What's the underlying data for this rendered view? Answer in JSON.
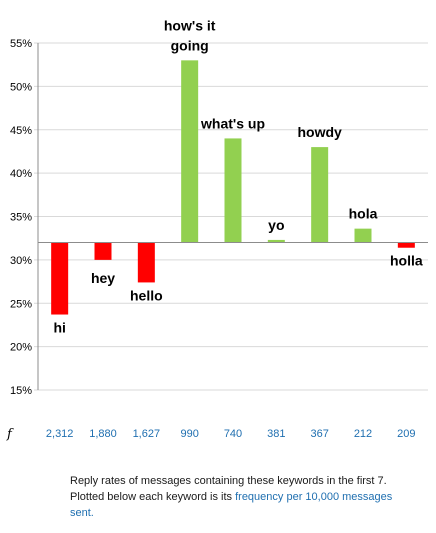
{
  "chart_data": {
    "type": "bar",
    "baseline": 32,
    "ylim": [
      15,
      55
    ],
    "yticks": [
      "15%",
      "20%",
      "25%",
      "30%",
      "35%",
      "40%",
      "45%",
      "50%",
      "55%"
    ],
    "grid": true,
    "categories": [
      "hi",
      "hey",
      "hello",
      "how's it going",
      "what's up",
      "yo",
      "howdy",
      "hola",
      "holla"
    ],
    "values": [
      23.7,
      30.0,
      27.4,
      53.0,
      44.0,
      32.3,
      43.0,
      33.6,
      31.4
    ],
    "frequencies": [
      "2,312",
      "1,880",
      "1,627",
      "990",
      "740",
      "381",
      "367",
      "212",
      "209"
    ],
    "frequency_axis_label": "f",
    "colors": {
      "positive": "#92d050",
      "negative": "#ff0000",
      "frequency_text": "#1f6fb0"
    }
  },
  "caption": {
    "text": "Reply rates of messages containing these keywords in the first 7. Plotted below each keyword is its ",
    "highlight": "frequency per 10,000 messages sent."
  }
}
